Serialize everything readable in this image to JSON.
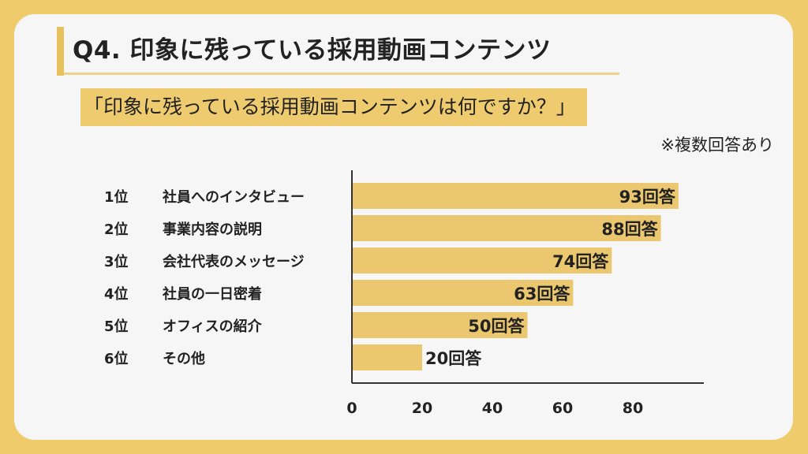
{
  "page": {
    "title": "Q4. 印象に残っている採用動画コンテンツ",
    "question": "「印象に残っている採用動画コンテンツは何ですか？」",
    "note": "※複数回答あり"
  },
  "colors": {
    "background": "#EFCB6B",
    "card": "#F6F6F6",
    "bar": "#EBC870",
    "axis": "#333333"
  },
  "chart_data": {
    "type": "bar",
    "orientation": "horizontal",
    "ranks": [
      "1位",
      "2位",
      "3位",
      "4位",
      "5位",
      "6位"
    ],
    "categories": [
      "社員へのインタビュー",
      "事業内容の説明",
      "会社代表のメッセージ",
      "社員の一日密着",
      "オフィスの紹介",
      "その他"
    ],
    "values": [
      93,
      88,
      74,
      63,
      50,
      20
    ],
    "value_labels": [
      "93回答",
      "88回答",
      "74回答",
      "63回答",
      "50回答",
      "20回答"
    ],
    "xticks": [
      0,
      20,
      40,
      60,
      80
    ],
    "xlim": [
      0,
      100
    ],
    "grid": false,
    "legend": "none"
  }
}
